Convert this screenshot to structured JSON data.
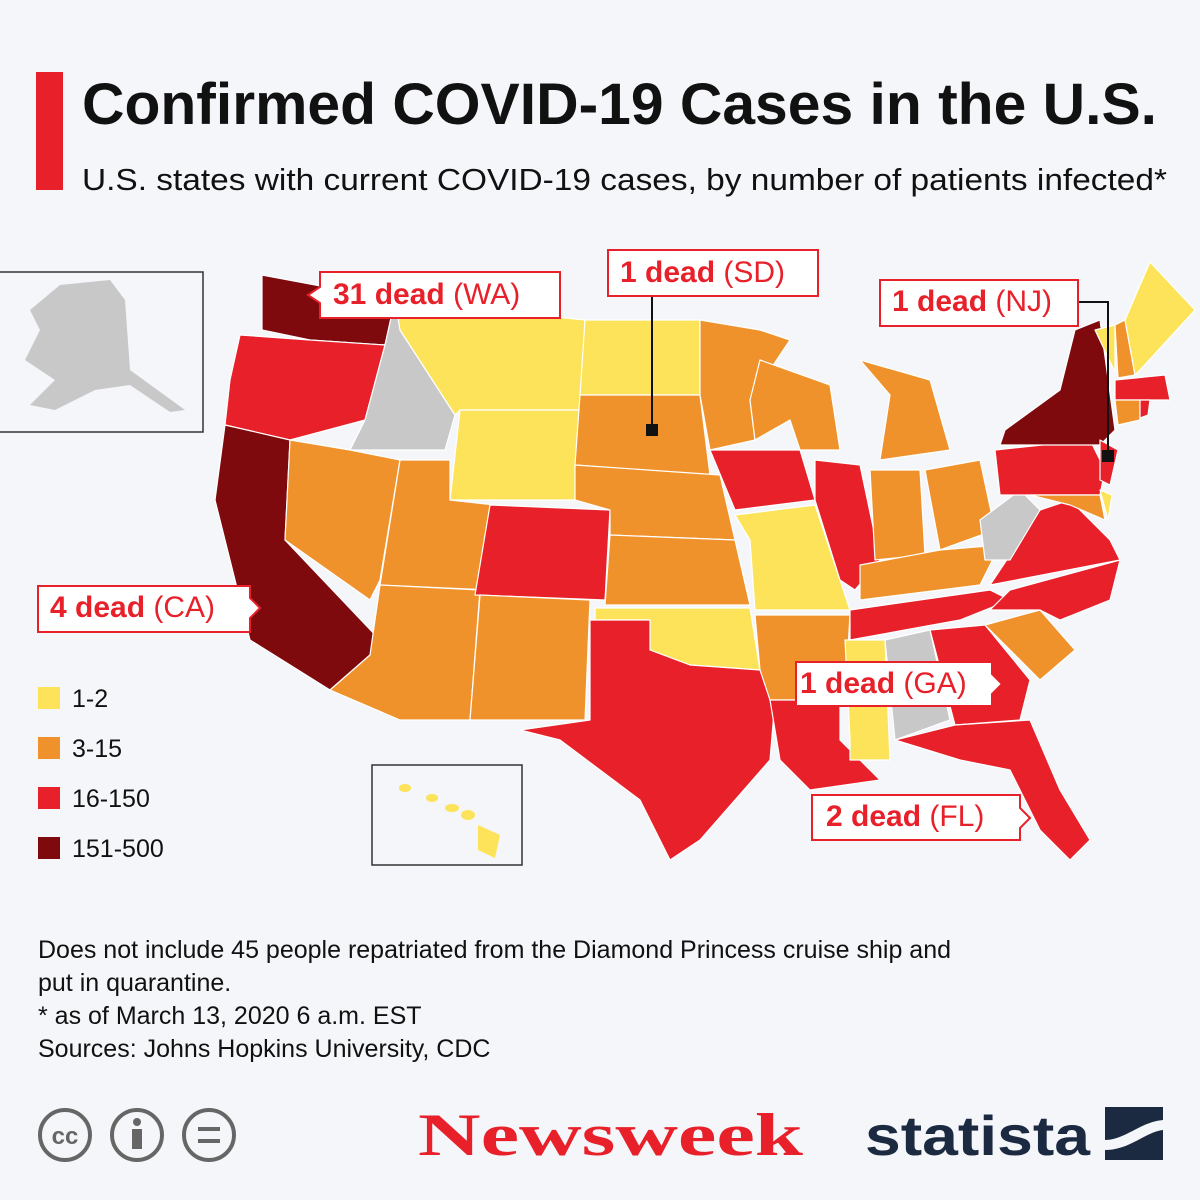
{
  "header": {
    "title": "Confirmed COVID-19 Cases in the U.S.",
    "subtitle": "U.S. states with current COVID-19 cases, by number of patients infected*"
  },
  "callouts": [
    {
      "deaths": "31 dead",
      "state": "(WA)"
    },
    {
      "deaths": "1 dead",
      "state": "(SD)"
    },
    {
      "deaths": "1 dead",
      "state": "(NJ)"
    },
    {
      "deaths": "4 dead",
      "state": "(CA)"
    },
    {
      "deaths": "1 dead",
      "state": "(GA)"
    },
    {
      "deaths": "2 dead",
      "state": "(FL)"
    }
  ],
  "legend": [
    {
      "label": "1-2",
      "color": "#fce35a"
    },
    {
      "label": "3-15",
      "color": "#f0922b"
    },
    {
      "label": "16-150",
      "color": "#e8202a"
    },
    {
      "label": "151-500",
      "color": "#7f0a0e"
    }
  ],
  "notes": [
    "Does not include 45 people repatriated from the Diamond Princess cruise ship and",
    "put in quarantine.",
    "* as of March 13, 2020 6 a.m. EST",
    "Sources: Johns Hopkins University, CDC"
  ],
  "footer": {
    "brand1": "Newsweek",
    "brand2": "statista"
  }
}
